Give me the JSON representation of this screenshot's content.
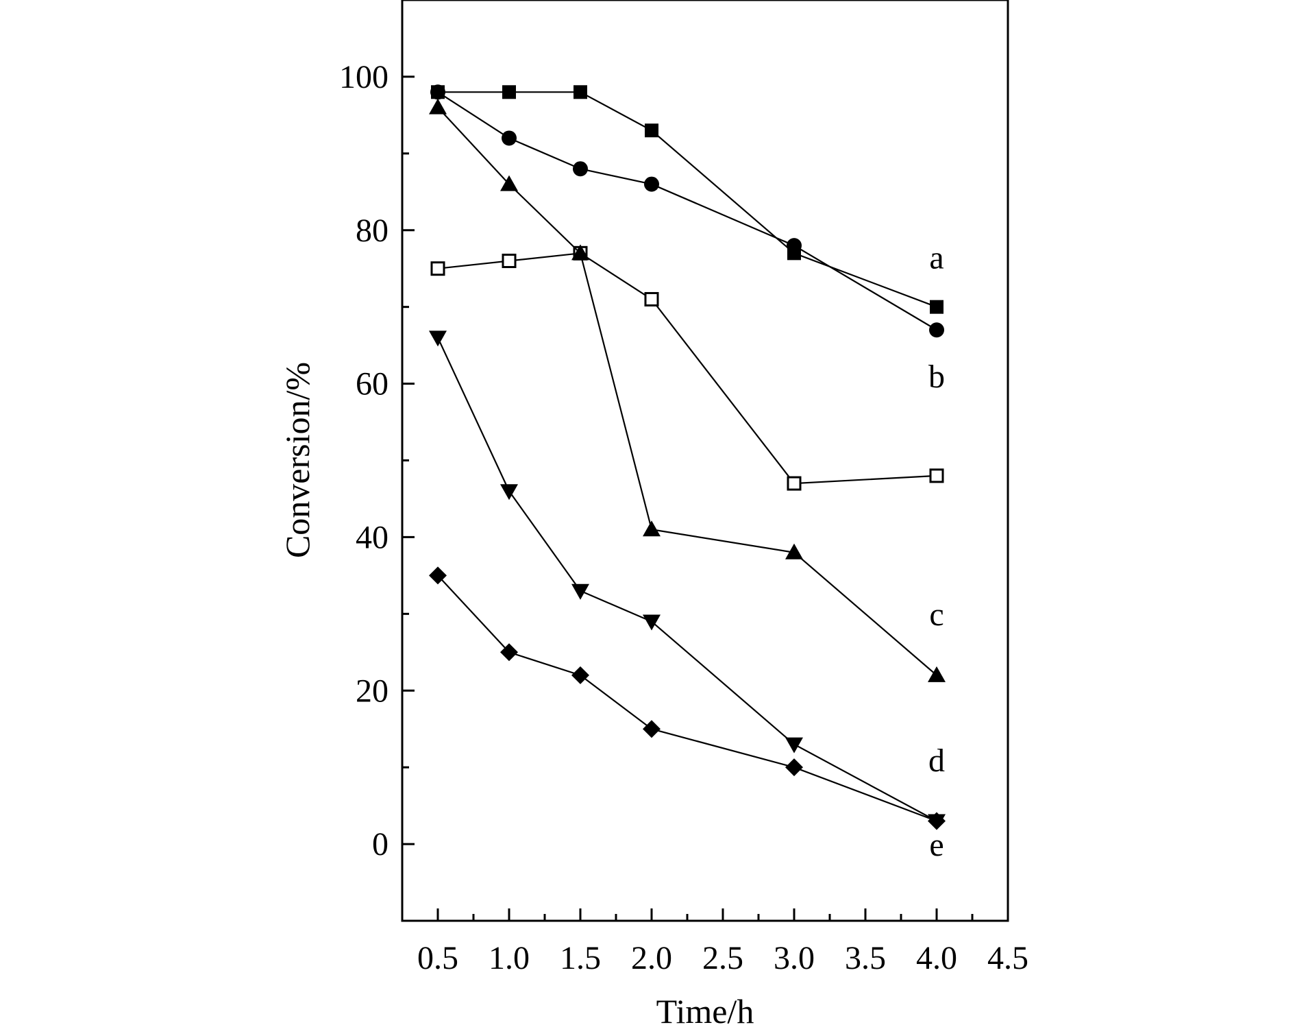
{
  "chart_data": {
    "type": "line",
    "title": "",
    "xlabel": "Time/h",
    "ylabel": "Conversion/%",
    "xlim": [
      0.25,
      4.5
    ],
    "ylim": [
      -10,
      110
    ],
    "x_ticks": [
      0.5,
      1.0,
      1.5,
      2.0,
      2.5,
      3.0,
      3.5,
      4.0,
      4.5
    ],
    "x_tick_labels": [
      "0.5",
      "1.0",
      "1.5",
      "2.0",
      "2.5",
      "3.0",
      "3.5",
      "4.0",
      "4.5"
    ],
    "y_ticks": [
      0,
      20,
      40,
      60,
      80,
      100
    ],
    "y_tick_labels": [
      "0",
      "20",
      "40",
      "60",
      "80",
      "100"
    ],
    "grid": false,
    "legend": "none",
    "series": [
      {
        "marker": "filled-square",
        "color": "#000000",
        "x": [
          0.5,
          1.0,
          1.5,
          2.0,
          3.0,
          4.0
        ],
        "y": [
          98,
          98,
          98,
          93,
          77,
          70
        ]
      },
      {
        "marker": "filled-circle",
        "color": "#000000",
        "x": [
          0.5,
          1.0,
          1.5,
          2.0,
          3.0,
          4.0
        ],
        "y": [
          98,
          92,
          88,
          86,
          78,
          67
        ]
      },
      {
        "marker": "open-square",
        "color": "#000000",
        "x": [
          0.5,
          1.0,
          1.5,
          2.0,
          3.0,
          4.0
        ],
        "y": [
          75,
          76,
          77,
          71,
          47,
          48
        ]
      },
      {
        "marker": "filled-triangle-up",
        "color": "#000000",
        "x": [
          0.5,
          1.0,
          1.5,
          2.0,
          3.0,
          4.0
        ],
        "y": [
          96,
          86,
          77,
          41,
          38,
          22
        ]
      },
      {
        "marker": "filled-triangle-down",
        "color": "#000000",
        "x": [
          0.5,
          1.0,
          1.5,
          2.0,
          3.0,
          4.0
        ],
        "y": [
          66,
          46,
          33,
          29,
          13,
          3
        ]
      },
      {
        "marker": "filled-diamond",
        "color": "#000000",
        "x": [
          0.5,
          1.0,
          1.5,
          2.0,
          3.0,
          4.0
        ],
        "y": [
          35,
          25,
          22,
          15,
          10,
          3
        ]
      }
    ],
    "annotations": [
      {
        "text": "a",
        "x": 4.0,
        "y": 75
      },
      {
        "text": "b",
        "x": 4.0,
        "y": 59.5
      },
      {
        "text": "c",
        "x": 4.0,
        "y": 28.5
      },
      {
        "text": "d",
        "x": 4.0,
        "y": 9.5
      },
      {
        "text": "e",
        "x": 4.0,
        "y": -1.5
      }
    ]
  }
}
